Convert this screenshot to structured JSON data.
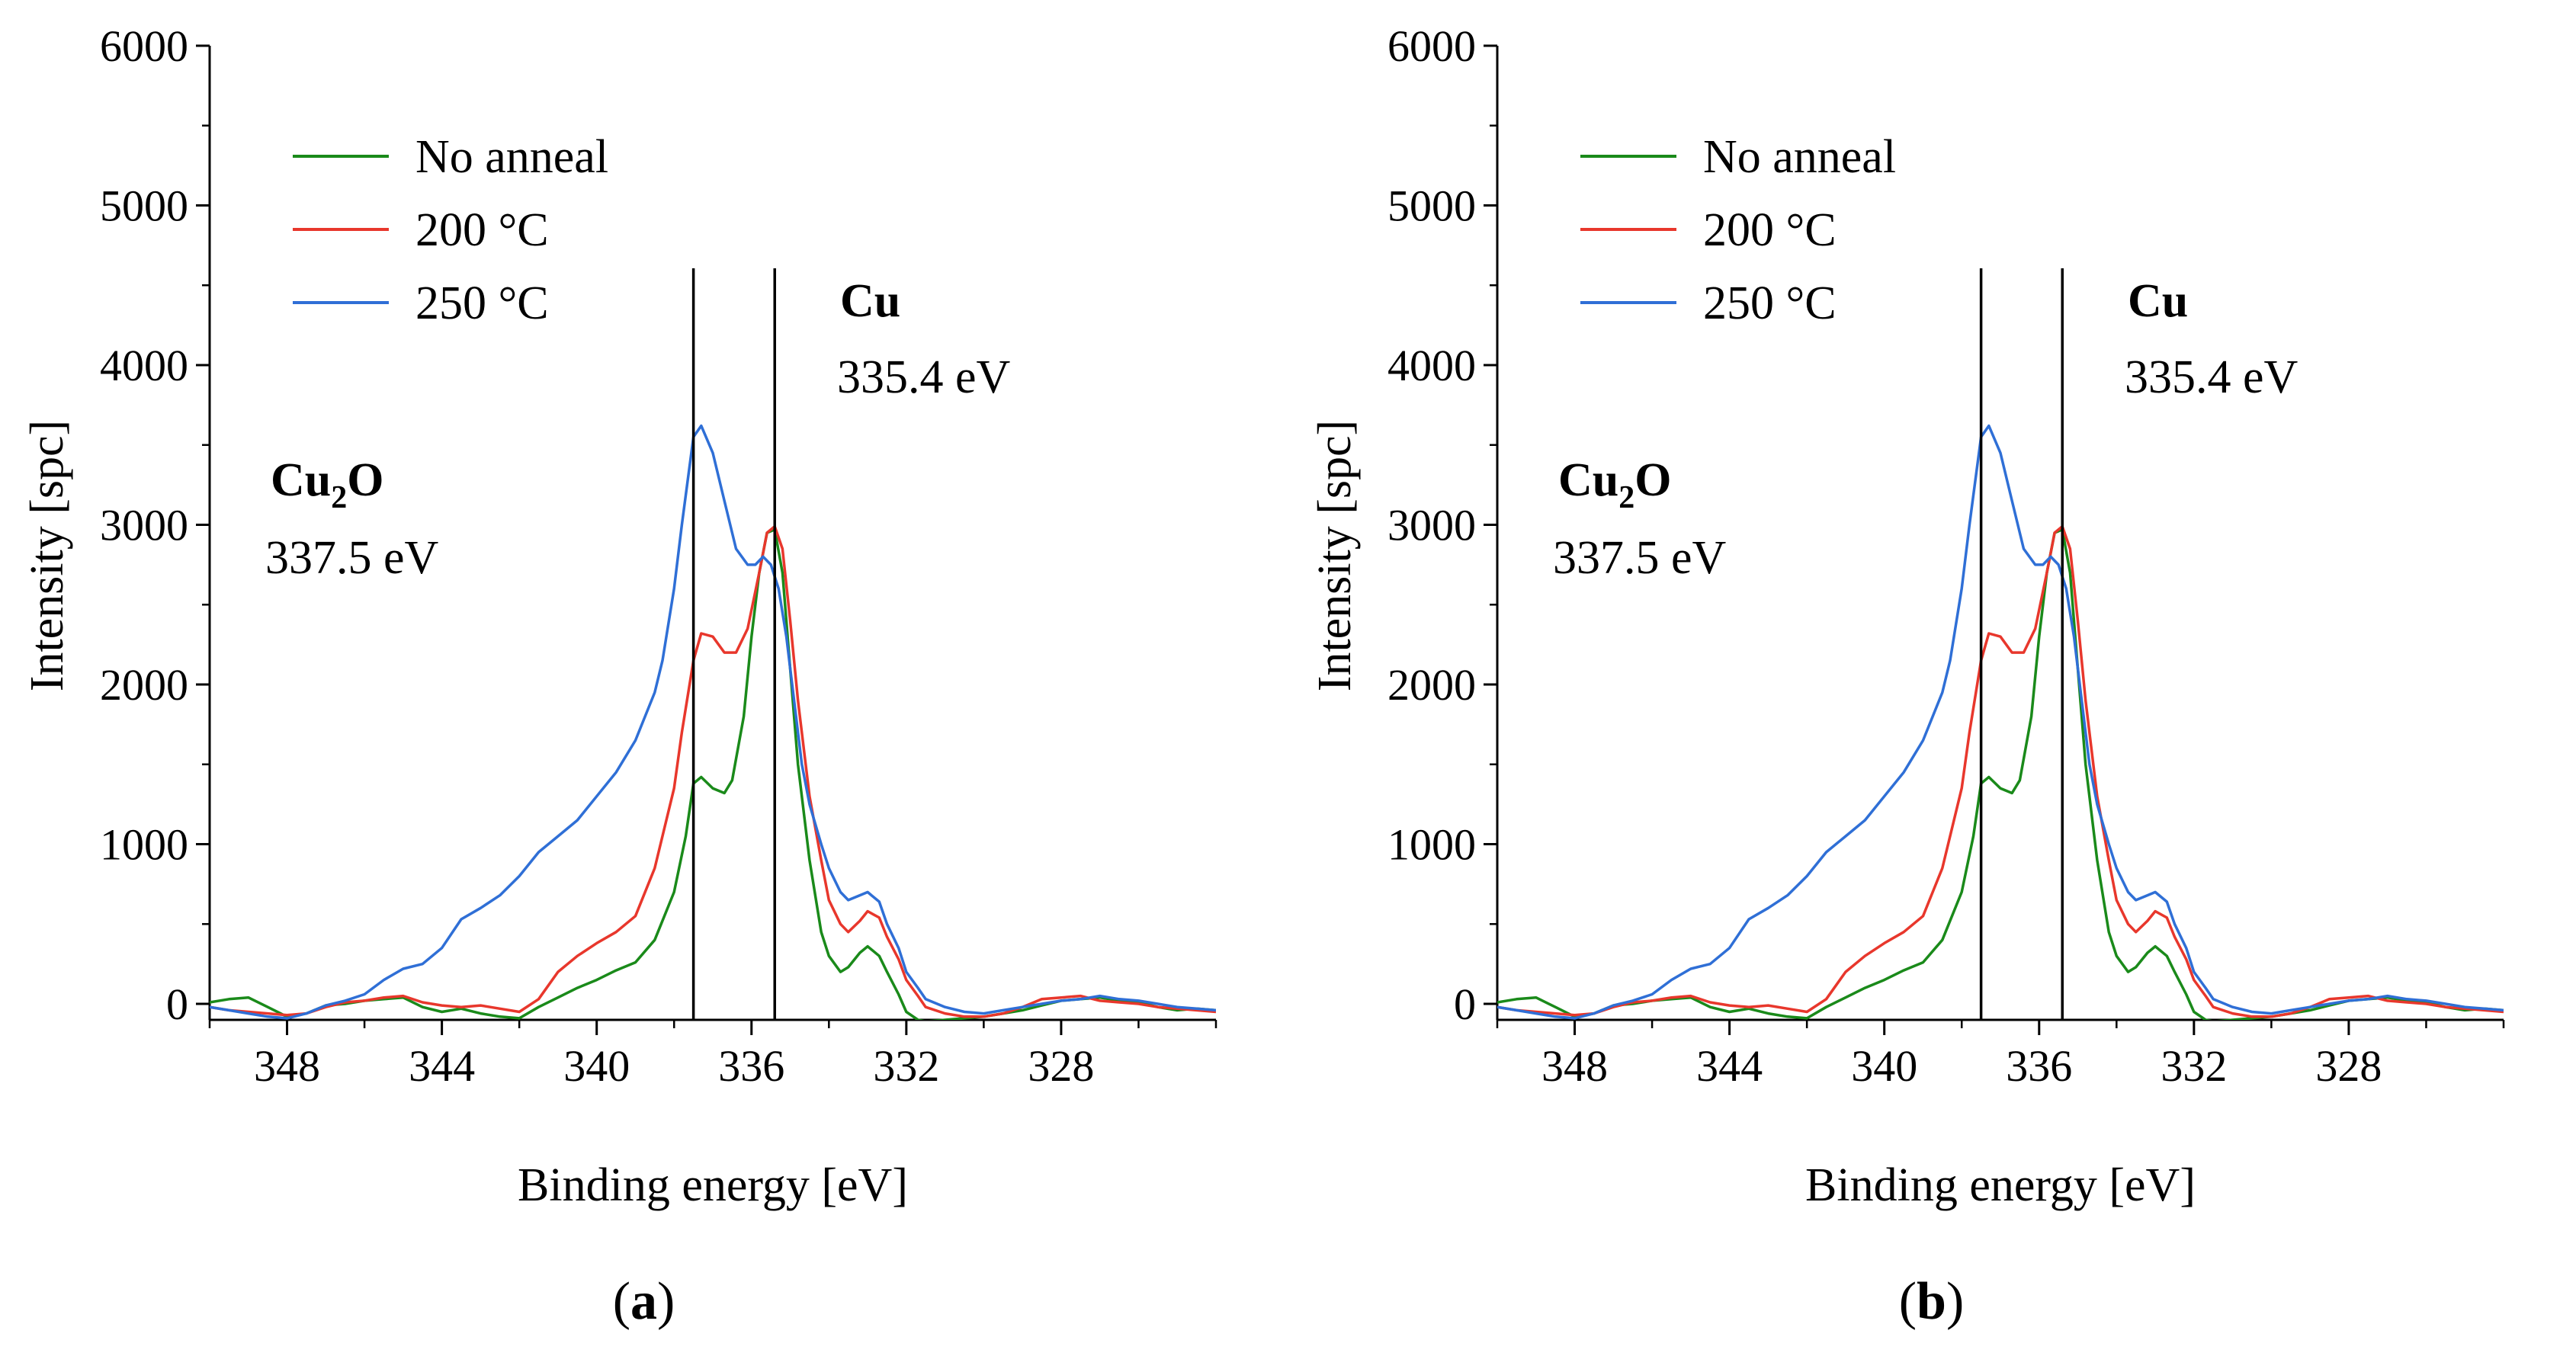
{
  "chart_data": [
    {
      "type": "line",
      "panel_label": "a",
      "xlabel": "Binding energy [eV]",
      "ylabel": "Intensity [spc]",
      "xlim": [
        350,
        324
      ],
      "ylim": [
        -100,
        6000
      ],
      "x_ticks": [
        348,
        344,
        340,
        336,
        332,
        328
      ],
      "y_ticks": [
        0,
        1000,
        2000,
        3000,
        4000,
        5000,
        6000
      ],
      "legend": {
        "position": "top-left",
        "entries": [
          {
            "name": "No anneal",
            "color": "#1a8a1a"
          },
          {
            "name": "200 °C",
            "color": "#e8372c"
          },
          {
            "name": "250 °C",
            "color": "#2f6fd6"
          }
        ]
      },
      "reference_lines": [
        {
          "x": 337.5,
          "label": "Cu",
          "sub": "2",
          "label_rest": "O",
          "value_label": "337.5 eV"
        },
        {
          "x": 335.4,
          "label": "Cu",
          "sub": "",
          "label_rest": "",
          "value_label": "335.4 eV"
        }
      ],
      "series": [
        {
          "name": "No anneal",
          "color": "#1a8a1a",
          "x": [
            350,
            349.5,
            349,
            348.5,
            348,
            347.5,
            347,
            346.5,
            346,
            345.5,
            345,
            344.5,
            344,
            343.5,
            343,
            342.5,
            342,
            341.5,
            341,
            340.5,
            340,
            339.5,
            339,
            338.5,
            338,
            337.7,
            337.5,
            337.3,
            337,
            336.7,
            336.5,
            336.2,
            336,
            335.8,
            335.6,
            335.4,
            335.2,
            335,
            334.8,
            334.5,
            334.2,
            334,
            333.7,
            333.5,
            333.2,
            333,
            332.7,
            332.5,
            332.2,
            332,
            331.7,
            331.5,
            331,
            330.5,
            330,
            329.5,
            329,
            328.5,
            328,
            327.5,
            327,
            326.5,
            326,
            325.5,
            325,
            324.5,
            324
          ],
          "values": [
            10,
            30,
            40,
            -20,
            -80,
            -60,
            -10,
            0,
            20,
            30,
            40,
            -20,
            -50,
            -30,
            -60,
            -80,
            -90,
            -20,
            40,
            100,
            150,
            210,
            260,
            400,
            700,
            1050,
            1380,
            1420,
            1350,
            1320,
            1400,
            1800,
            2300,
            2700,
            2950,
            2970,
            2700,
            2100,
            1500,
            900,
            450,
            300,
            200,
            230,
            320,
            360,
            300,
            200,
            60,
            -50,
            -100,
            -110,
            -100,
            -90,
            -80,
            -60,
            -40,
            -10,
            20,
            30,
            40,
            20,
            10,
            -20,
            -40,
            -30,
            -40
          ]
        },
        {
          "name": "200 °C",
          "color": "#e8372c",
          "x": [
            350,
            349.5,
            349,
            348.5,
            348,
            347.5,
            347,
            346.5,
            346,
            345.5,
            345,
            344.5,
            344,
            343.5,
            343,
            342.5,
            342,
            341.5,
            341,
            340.5,
            340,
            339.5,
            339,
            338.5,
            338,
            337.8,
            337.5,
            337.3,
            337,
            336.7,
            336.4,
            336.1,
            335.8,
            335.6,
            335.4,
            335.2,
            335,
            334.8,
            334.5,
            334.2,
            334,
            333.7,
            333.5,
            333.2,
            333,
            332.7,
            332.5,
            332.2,
            332,
            331.7,
            331.5,
            331,
            330.5,
            330,
            329.5,
            329,
            328.5,
            328,
            327.5,
            327,
            326.5,
            326,
            325.5,
            325,
            324.5,
            324
          ],
          "values": [
            -20,
            -40,
            -50,
            -60,
            -70,
            -60,
            -20,
            10,
            20,
            40,
            50,
            10,
            -10,
            -20,
            -10,
            -30,
            -50,
            30,
            200,
            300,
            380,
            450,
            550,
            850,
            1350,
            1700,
            2150,
            2320,
            2300,
            2200,
            2200,
            2350,
            2700,
            2950,
            2990,
            2850,
            2400,
            1900,
            1300,
            900,
            650,
            500,
            450,
            520,
            580,
            540,
            420,
            280,
            150,
            50,
            -20,
            -60,
            -80,
            -80,
            -60,
            -20,
            30,
            40,
            50,
            20,
            10,
            0,
            -20,
            -30,
            -40,
            -50
          ]
        },
        {
          "name": "250 °C",
          "color": "#2f6fd6",
          "x": [
            350,
            349.5,
            349,
            348.5,
            348,
            347.5,
            347,
            346.5,
            346,
            345.5,
            345,
            344.5,
            344,
            343.5,
            343,
            342.5,
            342,
            341.5,
            341,
            340.5,
            340,
            339.5,
            339,
            338.5,
            338.3,
            338,
            337.8,
            337.5,
            337.3,
            337,
            336.7,
            336.4,
            336.1,
            335.9,
            335.7,
            335.5,
            335.3,
            335.1,
            334.9,
            334.7,
            334.5,
            334.2,
            334,
            333.7,
            333.5,
            333.2,
            333,
            332.7,
            332.5,
            332.2,
            332,
            331.7,
            331.5,
            331,
            330.5,
            330,
            329.5,
            329,
            328.5,
            328,
            327.5,
            327,
            326.5,
            326,
            325.5,
            325,
            324.5,
            324
          ],
          "values": [
            -20,
            -40,
            -60,
            -80,
            -90,
            -60,
            -10,
            20,
            60,
            150,
            220,
            250,
            350,
            530,
            600,
            680,
            800,
            950,
            1050,
            1150,
            1300,
            1450,
            1650,
            1950,
            2150,
            2600,
            3000,
            3550,
            3620,
            3450,
            3150,
            2850,
            2750,
            2750,
            2800,
            2750,
            2600,
            2300,
            1900,
            1500,
            1250,
            1000,
            850,
            700,
            650,
            680,
            700,
            640,
            500,
            350,
            200,
            100,
            30,
            -20,
            -50,
            -60,
            -40,
            -20,
            0,
            20,
            30,
            50,
            30,
            20,
            0,
            -20,
            -30,
            -40
          ]
        }
      ]
    },
    {
      "type": "line",
      "panel_label": "b",
      "xlabel": "Binding energy [eV]",
      "ylabel": "Intensity [spc]",
      "xlim": [
        350,
        324
      ],
      "ylim": [
        -100,
        6000
      ],
      "x_ticks": [
        348,
        344,
        340,
        336,
        332,
        328
      ],
      "y_ticks": [
        0,
        1000,
        2000,
        3000,
        4000,
        5000,
        6000
      ],
      "legend": {
        "position": "top-left",
        "entries": [
          {
            "name": "No anneal",
            "color": "#1a8a1a"
          },
          {
            "name": "200 °C",
            "color": "#e8372c"
          },
          {
            "name": "250 °C",
            "color": "#2f6fd6"
          }
        ]
      },
      "reference_lines": [
        {
          "x": 337.5,
          "label": "Cu",
          "sub": "2",
          "label_rest": "O",
          "value_label": "337.5 eV"
        },
        {
          "x": 335.4,
          "label": "Cu",
          "sub": "",
          "label_rest": "",
          "value_label": "335.4 eV"
        }
      ],
      "series": [
        {
          "name": "No anneal",
          "color": "#1a8a1a",
          "x": [
            350,
            349.5,
            349,
            348.5,
            348,
            347.5,
            347,
            346.5,
            346,
            345.5,
            345,
            344.5,
            344,
            343.5,
            343,
            342.5,
            342,
            341.5,
            341,
            340.5,
            340,
            339.5,
            339,
            338.5,
            338,
            337.7,
            337.5,
            337.3,
            337,
            336.7,
            336.5,
            336.2,
            336,
            335.8,
            335.6,
            335.4,
            335.2,
            335,
            334.8,
            334.5,
            334.2,
            334,
            333.7,
            333.5,
            333.2,
            333,
            332.7,
            332.5,
            332.2,
            332,
            331.7,
            331.5,
            331,
            330.5,
            330,
            329.5,
            329,
            328.5,
            328,
            327.5,
            327,
            326.5,
            326,
            325.5,
            325,
            324.5,
            324
          ],
          "values": [
            10,
            30,
            40,
            -20,
            -80,
            -60,
            -10,
            0,
            20,
            30,
            40,
            -20,
            -50,
            -30,
            -60,
            -80,
            -90,
            -20,
            40,
            100,
            150,
            210,
            260,
            400,
            700,
            1050,
            1380,
            1420,
            1350,
            1320,
            1400,
            1800,
            2300,
            2700,
            2950,
            2970,
            2700,
            2100,
            1500,
            900,
            450,
            300,
            200,
            230,
            320,
            360,
            300,
            200,
            60,
            -50,
            -100,
            -110,
            -100,
            -90,
            -80,
            -60,
            -40,
            -10,
            20,
            30,
            40,
            20,
            10,
            -20,
            -40,
            -30,
            -40
          ]
        },
        {
          "name": "200 °C",
          "color": "#e8372c",
          "x": [
            350,
            349.5,
            349,
            348.5,
            348,
            347.5,
            347,
            346.5,
            346,
            345.5,
            345,
            344.5,
            344,
            343.5,
            343,
            342.5,
            342,
            341.5,
            341,
            340.5,
            340,
            339.5,
            339,
            338.5,
            338,
            337.8,
            337.5,
            337.3,
            337,
            336.7,
            336.4,
            336.1,
            335.8,
            335.6,
            335.4,
            335.2,
            335,
            334.8,
            334.5,
            334.2,
            334,
            333.7,
            333.5,
            333.2,
            333,
            332.7,
            332.5,
            332.2,
            332,
            331.7,
            331.5,
            331,
            330.5,
            330,
            329.5,
            329,
            328.5,
            328,
            327.5,
            327,
            326.5,
            326,
            325.5,
            325,
            324.5,
            324
          ],
          "values": [
            -20,
            -40,
            -50,
            -60,
            -70,
            -60,
            -20,
            10,
            20,
            40,
            50,
            10,
            -10,
            -20,
            -10,
            -30,
            -50,
            30,
            200,
            300,
            380,
            450,
            550,
            850,
            1350,
            1700,
            2150,
            2320,
            2300,
            2200,
            2200,
            2350,
            2700,
            2950,
            2990,
            2850,
            2400,
            1900,
            1300,
            900,
            650,
            500,
            450,
            520,
            580,
            540,
            420,
            280,
            150,
            50,
            -20,
            -60,
            -80,
            -80,
            -60,
            -20,
            30,
            40,
            50,
            20,
            10,
            0,
            -20,
            -30,
            -40,
            -50
          ]
        },
        {
          "name": "250 °C",
          "color": "#2f6fd6",
          "x": [
            350,
            349.5,
            349,
            348.5,
            348,
            347.5,
            347,
            346.5,
            346,
            345.5,
            345,
            344.5,
            344,
            343.5,
            343,
            342.5,
            342,
            341.5,
            341,
            340.5,
            340,
            339.5,
            339,
            338.5,
            338.3,
            338,
            337.8,
            337.5,
            337.3,
            337,
            336.7,
            336.4,
            336.1,
            335.9,
            335.7,
            335.5,
            335.3,
            335.1,
            334.9,
            334.7,
            334.5,
            334.2,
            334,
            333.7,
            333.5,
            333.2,
            333,
            332.7,
            332.5,
            332.2,
            332,
            331.7,
            331.5,
            331,
            330.5,
            330,
            329.5,
            329,
            328.5,
            328,
            327.5,
            327,
            326.5,
            326,
            325.5,
            325,
            324.5,
            324
          ],
          "values": [
            -20,
            -40,
            -60,
            -80,
            -90,
            -60,
            -10,
            20,
            60,
            150,
            220,
            250,
            350,
            530,
            600,
            680,
            800,
            950,
            1050,
            1150,
            1300,
            1450,
            1650,
            1950,
            2150,
            2600,
            3000,
            3550,
            3620,
            3450,
            3150,
            2850,
            2750,
            2750,
            2800,
            2750,
            2600,
            2300,
            1900,
            1500,
            1250,
            1000,
            850,
            700,
            650,
            680,
            700,
            640,
            500,
            350,
            200,
            100,
            30,
            -20,
            -50,
            -60,
            -40,
            -20,
            0,
            20,
            30,
            50,
            30,
            20,
            0,
            -20,
            -30,
            -40
          ]
        }
      ]
    }
  ]
}
